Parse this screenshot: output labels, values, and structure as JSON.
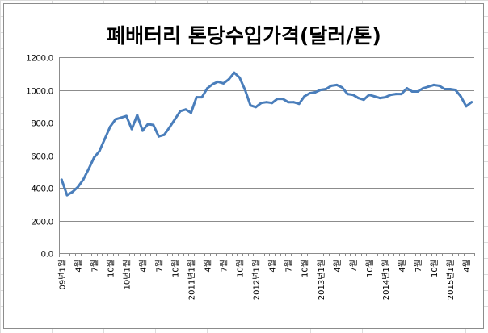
{
  "chart_data": {
    "type": "line",
    "title": "폐배터리 톤당수입가격(달러/톤)",
    "ylim": [
      0,
      1200
    ],
    "yticks": [
      "0.0",
      "200.0",
      "400.0",
      "600.0",
      "800.0",
      "1000.0",
      "1200.0"
    ],
    "grid": "horizontal",
    "legend": "none",
    "x_tick_labels": [
      "09년1월",
      "4월",
      "7월",
      "10월",
      "10년1월",
      "4월",
      "7월",
      "10월",
      "2011년1월",
      "4월",
      "7월",
      "10월",
      "2012년1월",
      "4월",
      "7월",
      "10월",
      "2013년1월",
      "4월",
      "7월",
      "10월",
      "2014년1월",
      "4월",
      "7월",
      "10월",
      "2015년1월",
      "4월"
    ],
    "series": [
      {
        "color": "#4a7ebb",
        "values": [
          450,
          355,
          375,
          405,
          450,
          515,
          585,
          625,
          700,
          775,
          820,
          830,
          840,
          760,
          845,
          750,
          790,
          785,
          715,
          725,
          770,
          820,
          870,
          880,
          860,
          955,
          955,
          1010,
          1035,
          1050,
          1040,
          1065,
          1105,
          1075,
          1000,
          905,
          895,
          920,
          925,
          920,
          945,
          945,
          925,
          925,
          915,
          960,
          980,
          985,
          1000,
          1005,
          1025,
          1030,
          1015,
          975,
          970,
          950,
          940,
          970,
          960,
          950,
          955,
          970,
          975,
          975,
          1010,
          990,
          990,
          1010,
          1020,
          1030,
          1025,
          1005,
          1005,
          1000,
          960,
          900,
          925
        ]
      }
    ]
  }
}
